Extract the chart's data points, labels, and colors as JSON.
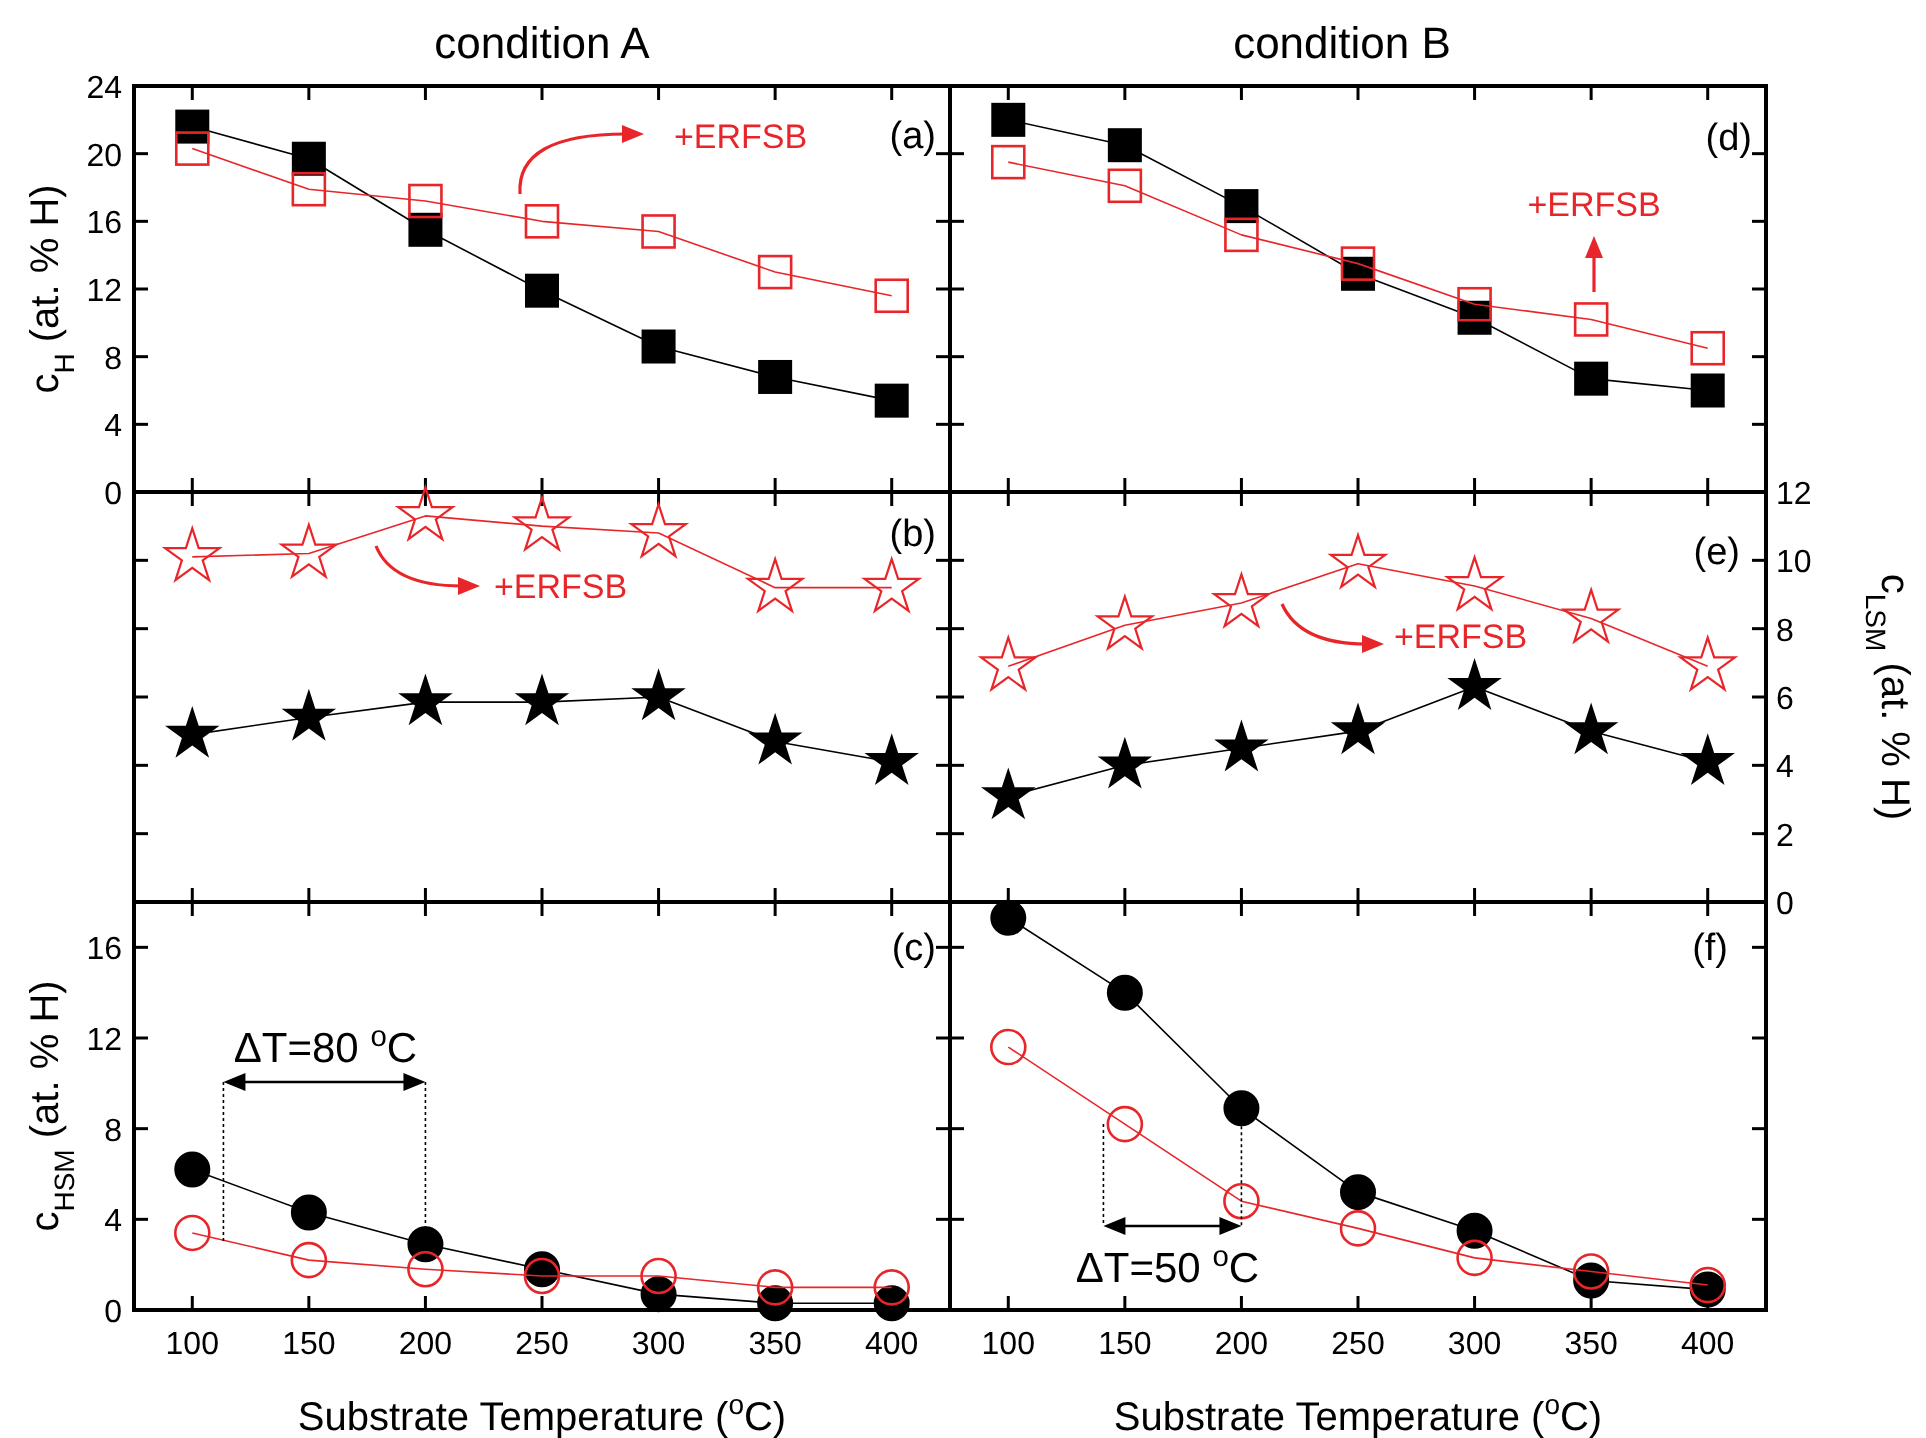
{
  "chart_data": [
    {
      "type": "line",
      "title": "condition A",
      "ylabel": "c$_{H}$ (at. % H)",
      "x": [
        100,
        150,
        200,
        250,
        300,
        350,
        400
      ],
      "xlim": [
        75,
        425
      ],
      "xticks": [
        100,
        150,
        200,
        250,
        300,
        350,
        400
      ],
      "ylim": [
        0,
        24
      ],
      "yticks": [
        0,
        4,
        8,
        12,
        16,
        20,
        24
      ],
      "marker": "square",
      "tick_labels": "y",
      "grid": false,
      "annotations": [
        "(a)",
        "+ERFSB"
      ],
      "series": [
        {
          "color": "#000000",
          "values": [
            21.6,
            19.7,
            15.5,
            11.9,
            8.6,
            6.8,
            5.4
          ]
        },
        {
          "color": "#e8262a",
          "values": [
            20.3,
            17.9,
            17.2,
            16.0,
            15.4,
            13.0,
            11.6
          ]
        }
      ]
    },
    {
      "type": "line",
      "title": "condition B",
      "x": [
        100,
        150,
        200,
        250,
        300,
        350,
        400
      ],
      "xlim": [
        75,
        425
      ],
      "xticks": [
        100,
        150,
        200,
        250,
        300,
        350,
        400
      ],
      "ylim": [
        0,
        24
      ],
      "yticks": [
        0,
        4,
        8,
        12,
        16,
        20,
        24
      ],
      "marker": "square",
      "tick_labels": false,
      "grid": false,
      "annotations": [
        "(d)",
        "+ERFSB"
      ],
      "series": [
        {
          "color": "#000000",
          "values": [
            22.0,
            20.5,
            16.9,
            12.9,
            10.3,
            6.7,
            6.0
          ]
        },
        {
          "color": "#e8262a",
          "values": [
            19.5,
            18.1,
            15.2,
            13.5,
            11.1,
            10.2,
            8.5
          ]
        }
      ]
    },
    {
      "type": "line",
      "x": [
        100,
        150,
        200,
        250,
        300,
        350,
        400
      ],
      "xlim": [
        75,
        425
      ],
      "xticks": [
        100,
        150,
        200,
        250,
        300,
        350,
        400
      ],
      "ylim": [
        0,
        12
      ],
      "yticks": [
        0,
        2,
        4,
        6,
        8,
        10,
        12
      ],
      "marker": "star",
      "tick_labels": false,
      "grid": false,
      "annotations": [
        "(b)",
        "+ERFSB"
      ],
      "series": [
        {
          "color": "#000000",
          "values": [
            4.9,
            5.4,
            5.85,
            5.85,
            6.0,
            4.7,
            4.1
          ]
        },
        {
          "color": "#e8262a",
          "values": [
            10.1,
            10.2,
            11.3,
            11.0,
            10.8,
            9.2,
            9.2
          ]
        }
      ]
    },
    {
      "type": "line",
      "ylabel": "c$_{LSM}$ (at. % H)",
      "x": [
        100,
        150,
        200,
        250,
        300,
        350,
        400
      ],
      "xlim": [
        75,
        425
      ],
      "xticks": [
        100,
        150,
        200,
        250,
        300,
        350,
        400
      ],
      "ylim": [
        0,
        12
      ],
      "yticks": [
        0,
        2,
        4,
        6,
        8,
        10,
        12
      ],
      "marker": "star",
      "tick_labels": "y",
      "grid": false,
      "annotations": [
        "(e)",
        "+ERFSB"
      ],
      "series": [
        {
          "color": "#000000",
          "values": [
            3.1,
            4.0,
            4.5,
            5.0,
            6.3,
            5.0,
            4.1
          ]
        },
        {
          "color": "#e8262a",
          "values": [
            6.9,
            8.1,
            8.75,
            9.9,
            9.25,
            8.3,
            6.9
          ]
        }
      ]
    },
    {
      "type": "line",
      "xlabel": "Substrate Temperature ($^{o}$C)",
      "ylabel": "c$_{HSM}$ (at. % H)",
      "x": [
        100,
        150,
        200,
        250,
        300,
        350,
        400
      ],
      "xlim": [
        75,
        425
      ],
      "xticks": [
        100,
        150,
        200,
        250,
        300,
        350,
        400
      ],
      "ylim": [
        0,
        18
      ],
      "yticks": [
        0,
        4,
        8,
        12,
        16
      ],
      "marker": "circle",
      "grid": false,
      "annotations": [
        "(c)",
        {
          "text": "ΔT=80 $^{o}$C",
          "x": 200,
          "y": 2.9
        }
      ],
      "series": [
        {
          "color": "#000000",
          "values": [
            6.2,
            4.3,
            2.9,
            1.8,
            0.7,
            0.3,
            0.3
          ]
        },
        {
          "color": "#e8262a",
          "values": [
            3.4,
            2.2,
            1.8,
            1.5,
            1.5,
            1.0,
            1.0
          ]
        }
      ]
    },
    {
      "type": "line",
      "xlabel": "Substrate Temperature ($^{o}$C)",
      "x": [
        100,
        150,
        200,
        250,
        300,
        350,
        400
      ],
      "xlim": [
        75,
        425
      ],
      "xticks": [
        100,
        150,
        200,
        250,
        300,
        350,
        400
      ],
      "ylim": [
        0,
        18
      ],
      "yticks": [
        0,
        4,
        8,
        12,
        16
      ],
      "marker": "circle",
      "tick_labels": "x",
      "grid": false,
      "annotations": [
        "(f)",
        {
          "text": "ΔT=50 $^{o}$C",
          "x": 200,
          "y": 8.9
        }
      ],
      "series": [
        {
          "color": "#000000",
          "values": [
            17.3,
            14.0,
            8.9,
            5.2,
            3.5,
            1.3,
            0.9
          ]
        },
        {
          "color": "#e8262a",
          "values": [
            11.6,
            8.2,
            4.8,
            3.6,
            2.3,
            1.7,
            1.1
          ]
        }
      ]
    }
  ]
}
